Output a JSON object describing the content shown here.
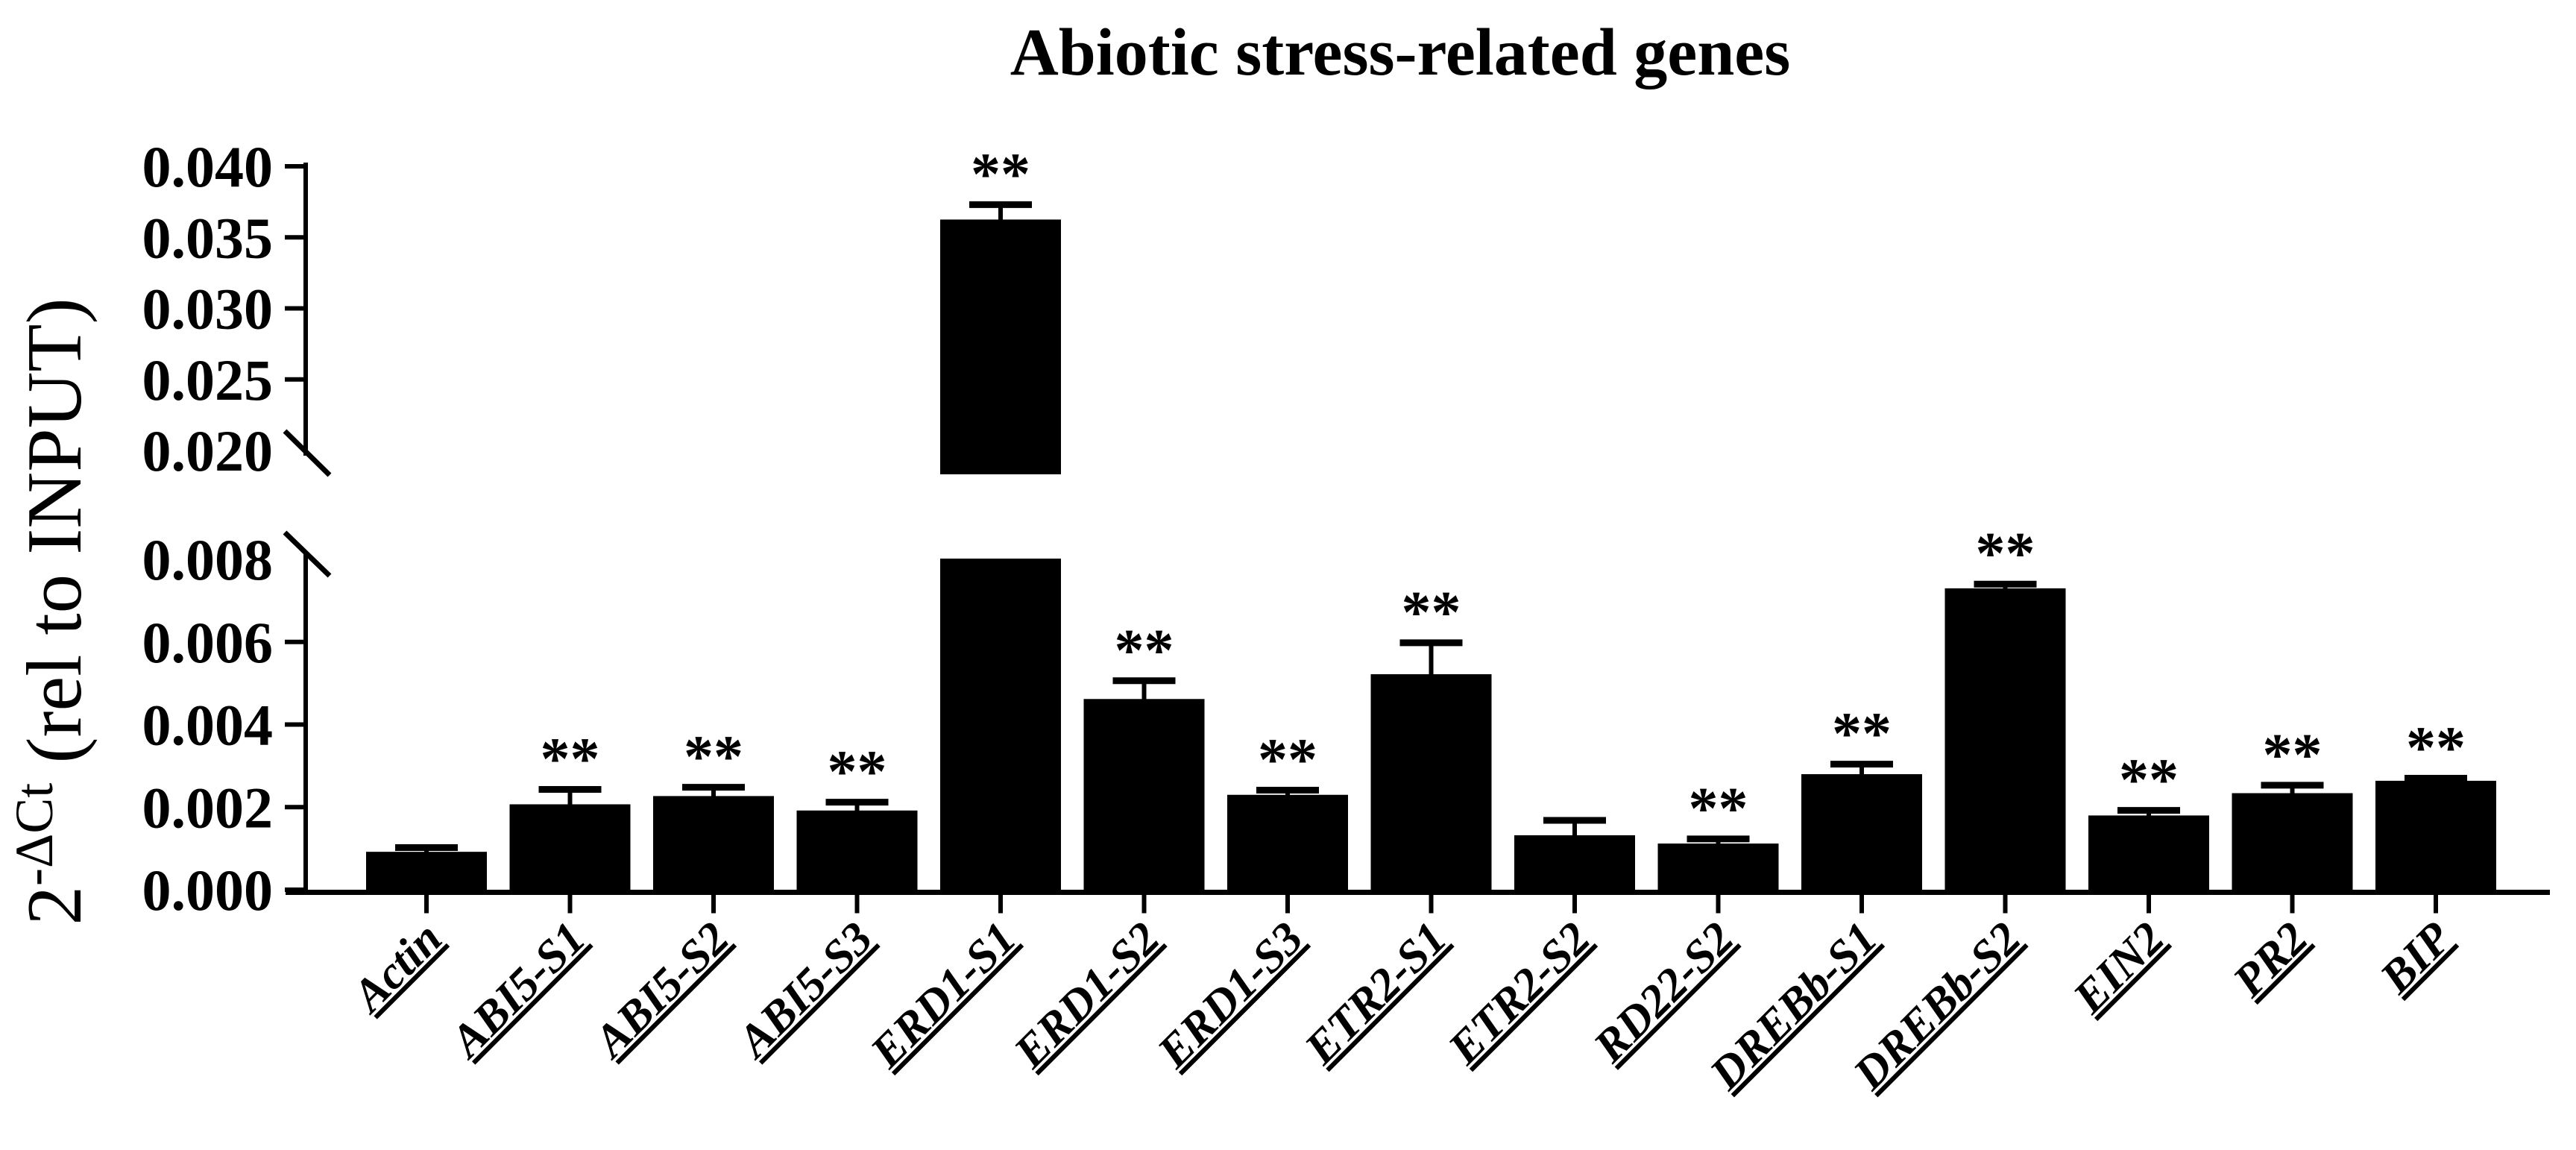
{
  "figure": {
    "title": "Abiotic stress-related genes",
    "y_axis_label": {
      "base": "2",
      "superscript": "-ΔCt",
      "suffix": " (rel to INPUT)"
    }
  },
  "chart_data": {
    "type": "bar",
    "title": "Abiotic stress-related genes",
    "ylabel": "2^-ΔCt (rel to INPUT)",
    "xlabel": "",
    "legend": false,
    "grid": false,
    "bar_color": "#000000",
    "background_color": "#ffffff",
    "error_bar_style": "upper SEM whisker with cap",
    "y_axis_break": {
      "lower_min": 0.0,
      "lower_max": 0.008,
      "upper_min": 0.02,
      "upper_max": 0.04
    },
    "lower_ticks": [
      [
        "0.000",
        0.0,
        true
      ],
      [
        "0.002",
        0.002,
        true
      ],
      [
        "0.004",
        0.004,
        true
      ],
      [
        "0.006",
        0.006,
        true
      ],
      [
        "0.008",
        0.008,
        false
      ]
    ],
    "upper_ticks": [
      [
        "0.020",
        0.02,
        false
      ],
      [
        "0.025",
        0.025,
        true
      ],
      [
        "0.030",
        0.03,
        true
      ],
      [
        "0.035",
        0.035,
        true
      ],
      [
        "0.040",
        0.04,
        true
      ]
    ],
    "categories": [
      "Actin",
      "ABI5-S1",
      "ABI5-S2",
      "ABI5-S3",
      "ERD1-S1",
      "ERD1-S2",
      "ERD1-S3",
      "ETR2-S1",
      "ETR2-S2",
      "RD22-S2",
      "DREBb-S1",
      "DREBb-S2",
      "EIN2",
      "PR2",
      "BIP"
    ],
    "series": [
      {
        "name": "2^-ΔCt (rel to INPUT)",
        "points": [
          {
            "label": "Actin",
            "value": 0.0009,
            "error": 0.00012,
            "sig": "",
            "panel": "lower"
          },
          {
            "label": "ABI5-S1",
            "value": 0.00205,
            "error": 0.00038,
            "sig": "**",
            "panel": "lower"
          },
          {
            "label": "ABI5-S2",
            "value": 0.00225,
            "error": 0.00023,
            "sig": "**",
            "panel": "lower"
          },
          {
            "label": "ABI5-S3",
            "value": 0.0019,
            "error": 0.00022,
            "sig": "**",
            "panel": "lower"
          },
          {
            "label": "ERD1-S1",
            "value": 0.0362,
            "error": 0.0011,
            "sig": "**",
            "panel": "upper"
          },
          {
            "label": "ERD1-S2",
            "value": 0.0046,
            "error": 0.00046,
            "sig": "**",
            "panel": "lower"
          },
          {
            "label": "ERD1-S3",
            "value": 0.00228,
            "error": 0.00013,
            "sig": "**",
            "panel": "lower"
          },
          {
            "label": "ETR2-S1",
            "value": 0.0052,
            "error": 0.00078,
            "sig": "**",
            "panel": "lower"
          },
          {
            "label": "ETR2-S2",
            "value": 0.0013,
            "error": 0.00038,
            "sig": "",
            "panel": "lower"
          },
          {
            "label": "RD22-S2",
            "value": 0.0011,
            "error": 0.00013,
            "sig": "**",
            "panel": "lower"
          },
          {
            "label": "DREBb-S1",
            "value": 0.00278,
            "error": 0.00026,
            "sig": "**",
            "panel": "lower"
          },
          {
            "label": "DREBb-S2",
            "value": 0.00728,
            "error": 0.00012,
            "sig": "**",
            "panel": "lower"
          },
          {
            "label": "EIN2",
            "value": 0.00178,
            "error": 0.00014,
            "sig": "**",
            "panel": "lower"
          },
          {
            "label": "PR2",
            "value": 0.00232,
            "error": 0.00021,
            "sig": "**",
            "panel": "lower"
          },
          {
            "label": "BIP",
            "value": 0.00262,
            "error": 8e-05,
            "sig": "**",
            "panel": "lower"
          }
        ]
      }
    ]
  }
}
